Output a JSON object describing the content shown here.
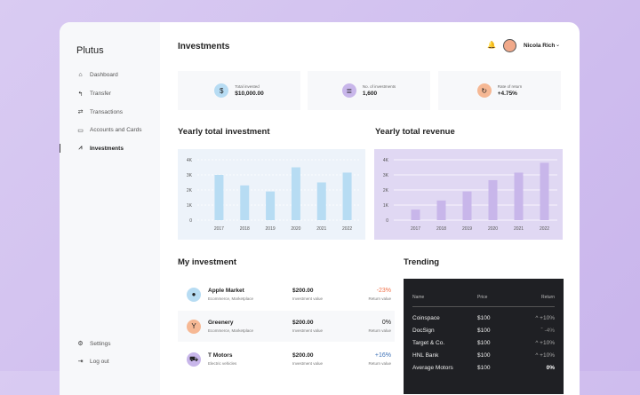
{
  "app": {
    "name": "Plutus"
  },
  "sidebar": {
    "items": [
      {
        "label": "Dashboard",
        "icon": "home-icon",
        "glyph": "⌂"
      },
      {
        "label": "Transfer",
        "icon": "reply-icon",
        "glyph": "↰"
      },
      {
        "label": "Transactions",
        "icon": "swap-icon",
        "glyph": "⇄"
      },
      {
        "label": "Accounts and Cards",
        "icon": "card-icon",
        "glyph": "▭"
      },
      {
        "label": "Investments",
        "icon": "chart-line-icon",
        "glyph": "⩘"
      }
    ],
    "bottom": [
      {
        "label": "Settings",
        "icon": "user-gear-icon",
        "glyph": "⚙"
      },
      {
        "label": "Log out",
        "icon": "logout-icon",
        "glyph": "⇥"
      }
    ]
  },
  "header": {
    "title": "Investments",
    "user": "Nicola Rich"
  },
  "stats": [
    {
      "label": "Total invested",
      "value": "$10,000.00",
      "color": "#b7dcf3",
      "glyph": "$"
    },
    {
      "label": "No. of investments",
      "value": "1,600",
      "color": "#c8b6ea",
      "glyph": "≣"
    },
    {
      "label": "Rate of return",
      "value": "+4.75%",
      "color": "#f6b894",
      "glyph": "↻"
    }
  ],
  "chart_data": [
    {
      "type": "bar",
      "title": "Yearly total investment",
      "categories": [
        "2017",
        "2018",
        "2019",
        "2020",
        "2021",
        "2022"
      ],
      "values": [
        3000,
        2300,
        1900,
        3500,
        2500,
        3150
      ],
      "ylim": [
        0,
        4000
      ],
      "yticks": [
        "0",
        "1K",
        "2K",
        "3K",
        "4K"
      ],
      "bar_color": "#b7dcf3",
      "bg": "#edf3fa",
      "grid": true
    },
    {
      "type": "bar",
      "title": "Yearly total revenue",
      "categories": [
        "2017",
        "2018",
        "2019",
        "2020",
        "2021",
        "2022"
      ],
      "values": [
        700,
        1300,
        1900,
        2650,
        3150,
        3800
      ],
      "ylim": [
        0,
        4000
      ],
      "yticks": [
        "0",
        "1K",
        "2K",
        "3K",
        "4K"
      ],
      "bar_color": "#c8b6ea",
      "bg": "#e0d8f3",
      "grid": true
    }
  ],
  "my_investment": {
    "title": "My investment",
    "rows": [
      {
        "name": "Apple Market",
        "category": "Ecommerce, Marketplace",
        "value": "$200.00",
        "value_label": "Investment value",
        "return": "-23%",
        "return_label": "Return value",
        "color": "#b7dcf3",
        "glyph": "●",
        "return_color": "#f0714a"
      },
      {
        "name": "Greenery",
        "category": "Ecommerce, Marketplace",
        "value": "$200.00",
        "value_label": "Investment value",
        "return": "0%",
        "return_label": "Return value",
        "color": "#f6b894",
        "glyph": "Y",
        "return_color": "#222"
      },
      {
        "name": "T Motors",
        "category": "Electric vehicles",
        "value": "$200.00",
        "value_label": "Investment value",
        "return": "+16%",
        "return_label": "Return value",
        "color": "#c8b6ea",
        "glyph": "⛟",
        "return_color": "#3b6fb5"
      }
    ]
  },
  "trending": {
    "title": "Trending",
    "headers": [
      "Name",
      "Price",
      "Return"
    ],
    "rows": [
      {
        "name": "Coinspace",
        "price": "$100",
        "return": "^ +10%"
      },
      {
        "name": "DocSign",
        "price": "$100",
        "return": "ˇ -4%"
      },
      {
        "name": "Target & Co.",
        "price": "$100",
        "return": "^ +10%"
      },
      {
        "name": "HNL Bank",
        "price": "$100",
        "return": "^ +10%"
      },
      {
        "name": "Average Motors",
        "price": "$100",
        "return": "0%"
      }
    ]
  }
}
